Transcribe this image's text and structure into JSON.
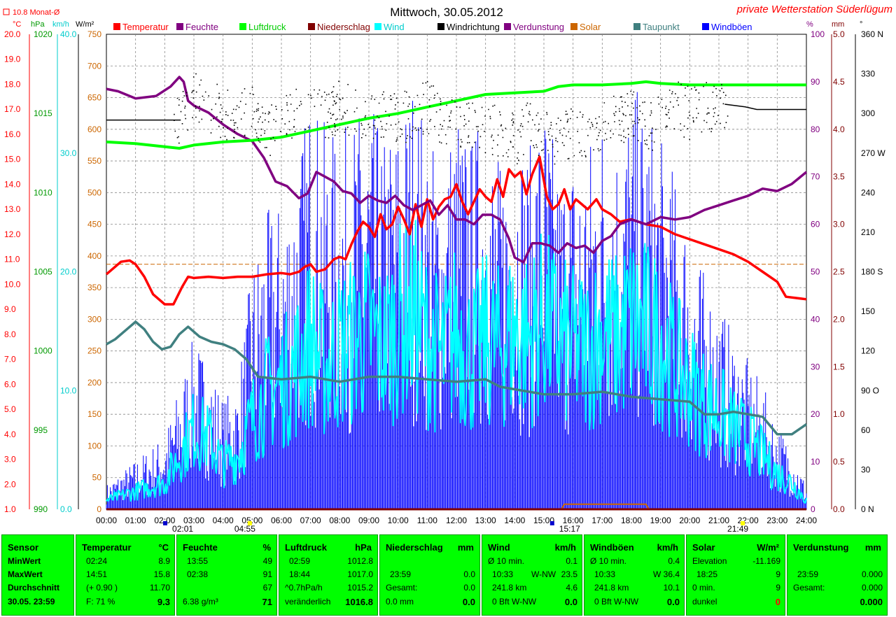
{
  "title": "Mittwoch, 30.05.2012",
  "station": "private Wetterstation Süderlügum",
  "monat_label": "10.8 Monat-Ø",
  "colors": {
    "temp": "#ff0000",
    "feuchte": "#800080",
    "luftdruck": "#00ff00",
    "niederschlag": "#800000",
    "wind": "#00ffff",
    "windrichtung": "#000000",
    "verdunstung": "#800080",
    "solar": "#cc6600",
    "taupunkt": "#408080",
    "windboeen": "#0000ff",
    "panel": "#00ff00"
  },
  "legend": [
    {
      "label": "Temperatur",
      "color": "#ff0000"
    },
    {
      "label": "Feuchte",
      "color": "#800080"
    },
    {
      "label": "Luftdruck",
      "color": "#00ff00"
    },
    {
      "label": "Niederschlag",
      "color": "#800000"
    },
    {
      "label": "Wind",
      "color": "#00ffff"
    },
    {
      "label": "Windrichtung",
      "color": "#000000"
    },
    {
      "label": "Verdunstung",
      "color": "#800080"
    },
    {
      "label": "Solar",
      "color": "#cc6600"
    },
    {
      "label": "Taupunkt",
      "color": "#408080"
    },
    {
      "label": "Windböen",
      "color": "#0000ff"
    }
  ],
  "chart_data": {
    "type": "line",
    "axes": {
      "temp": {
        "unit": "°C",
        "range": [
          1.0,
          20.0
        ],
        "ticks": [
          "20.0",
          "19.0",
          "18.0",
          "17.0",
          "16.0",
          "15.0",
          "14.0",
          "13.0",
          "12.0",
          "11.0",
          "10.0",
          "9.0",
          "8.0",
          "7.0",
          "6.0",
          "5.0",
          "4.0",
          "3.0",
          "2.0",
          "1.0"
        ]
      },
      "pressure": {
        "unit": "hPa",
        "range": [
          990,
          1020
        ],
        "ticks": [
          "1020",
          "1015",
          "1010",
          "1005",
          "1000",
          "995",
          "990"
        ]
      },
      "wind": {
        "unit": "km/h",
        "range": [
          0,
          40
        ],
        "ticks": [
          "40.0",
          "30.0",
          "20.0",
          "10.0",
          "0.0"
        ]
      },
      "solar": {
        "unit": "W/m²",
        "range": [
          0,
          750
        ],
        "ticks": [
          "750",
          "700",
          "650",
          "600",
          "550",
          "500",
          "450",
          "400",
          "350",
          "300",
          "250",
          "200",
          "150",
          "100",
          "50",
          "0"
        ]
      },
      "humidity": {
        "unit": "%",
        "range": [
          0,
          100
        ],
        "ticks": [
          "100",
          "90",
          "80",
          "70",
          "60",
          "50",
          "40",
          "30",
          "20",
          "10",
          "0"
        ]
      },
      "rain": {
        "unit": "mm",
        "range": [
          0,
          5
        ],
        "ticks": [
          "5.0",
          "4.5",
          "4.0",
          "3.5",
          "3.0",
          "2.5",
          "2.0",
          "1.5",
          "1.0",
          "0.5",
          "0.0"
        ]
      },
      "direction": {
        "unit": "°",
        "range": [
          0,
          360
        ],
        "ticks": [
          "360 N",
          "330",
          "300",
          "270 W",
          "240",
          "210",
          "180 S",
          "150",
          "120",
          "90 O",
          "60",
          "30",
          "0 N"
        ]
      },
      "time": {
        "range": [
          0,
          24
        ],
        "ticks": [
          "00:00",
          "01:00",
          "02:00",
          "03:00",
          "04:00",
          "05:00",
          "06:00",
          "07:00",
          "08:00",
          "09:00",
          "10:00",
          "11:00",
          "12:00",
          "13:00",
          "14:00",
          "15:00",
          "16:00",
          "17:00",
          "18:00",
          "19:00",
          "20:00",
          "21:00",
          "22:00",
          "23:00",
          "24:00"
        ]
      }
    },
    "markers": [
      "02:01",
      "04:55",
      "15:17",
      "21:49"
    ],
    "series": [
      {
        "name": "Temperatur",
        "axis": "temp",
        "x": [
          0,
          0.5,
          0.8,
          1.0,
          1.3,
          1.6,
          2.0,
          2.3,
          2.6,
          2.8,
          3.0,
          3.5,
          4.0,
          4.5,
          5.0,
          5.5,
          6.0,
          6.3,
          6.6,
          6.8,
          7.0,
          7.2,
          7.5,
          7.8,
          8.0,
          8.2,
          8.4,
          8.6,
          8.8,
          9.0,
          9.2,
          9.4,
          9.6,
          9.8,
          10.0,
          10.2,
          10.4,
          10.6,
          10.8,
          11.0,
          11.2,
          11.4,
          11.6,
          11.8,
          12.0,
          12.2,
          12.4,
          12.6,
          12.8,
          13.0,
          13.2,
          13.4,
          13.6,
          13.8,
          14.0,
          14.2,
          14.4,
          14.6,
          14.85,
          15.1,
          15.3,
          15.5,
          15.7,
          15.9,
          16.1,
          16.3,
          16.5,
          16.8,
          17.0,
          17.3,
          17.6,
          18.0,
          18.5,
          19.0,
          19.5,
          20.0,
          20.5,
          21.0,
          21.5,
          22.0,
          22.5,
          23.0,
          23.3,
          24.0
        ],
        "y": [
          10.4,
          10.9,
          10.95,
          10.8,
          10.3,
          9.6,
          9.2,
          9.2,
          9.9,
          10.3,
          10.25,
          10.3,
          10.25,
          10.3,
          10.3,
          10.4,
          10.45,
          10.4,
          10.5,
          10.7,
          10.8,
          10.5,
          10.6,
          11.0,
          11.1,
          11.0,
          11.6,
          12.1,
          12.5,
          12.3,
          11.9,
          12.8,
          12.2,
          12.4,
          13.1,
          12.6,
          12.0,
          13.2,
          12.3,
          13.4,
          12.6,
          13.1,
          13.4,
          13.5,
          14.0,
          13.3,
          12.8,
          13.3,
          13.8,
          13.5,
          13.3,
          14.2,
          13.5,
          14.6,
          14.3,
          14.5,
          13.6,
          14.4,
          15.1,
          13.5,
          13.0,
          13.2,
          13.8,
          13.0,
          13.4,
          13.2,
          13.0,
          13.4,
          13.0,
          12.8,
          12.5,
          12.6,
          12.4,
          12.3,
          12.0,
          11.8,
          11.6,
          11.4,
          11.2,
          10.9,
          10.5,
          10.1,
          9.5,
          9.4
        ]
      },
      {
        "name": "Feuchte",
        "axis": "humidity",
        "x": [
          0,
          0.4,
          1.0,
          1.7,
          2.2,
          2.5,
          2.65,
          2.8,
          3.0,
          3.5,
          4.0,
          4.5,
          5.0,
          5.4,
          5.8,
          6.2,
          6.6,
          6.9,
          7.2,
          7.5,
          7.8,
          8.1,
          8.4,
          8.7,
          9.0,
          9.3,
          9.6,
          9.9,
          10.2,
          10.5,
          10.8,
          11.1,
          11.4,
          11.7,
          12.0,
          12.3,
          12.6,
          12.9,
          13.2,
          13.5,
          13.8,
          14.0,
          14.3,
          14.6,
          14.9,
          15.2,
          15.5,
          15.8,
          16.1,
          16.4,
          16.7,
          17.0,
          17.3,
          17.6,
          18.0,
          18.5,
          19.0,
          19.5,
          20.0,
          20.5,
          21.0,
          21.5,
          22.0,
          22.5,
          23.0,
          23.5,
          24.0
        ],
        "y": [
          88.5,
          88,
          86.5,
          87,
          89,
          91,
          90,
          86,
          85,
          83.5,
          81,
          79,
          77.5,
          74,
          69,
          68,
          65.5,
          66.5,
          71,
          70,
          69,
          67,
          66.5,
          64.5,
          66,
          65,
          64.5,
          66,
          64,
          63,
          64,
          65,
          62,
          64,
          61,
          61,
          60,
          62,
          62,
          61,
          57,
          53,
          52,
          56,
          56,
          55.5,
          54,
          56,
          55,
          55.5,
          54,
          56.5,
          57.5,
          60,
          61,
          60,
          61.5,
          61,
          61.5,
          63,
          64,
          65,
          66,
          67.5,
          67,
          68.5,
          71
        ]
      },
      {
        "name": "Luftdruck",
        "axis": "pressure",
        "x": [
          0,
          1,
          2,
          2.5,
          3,
          4,
          5,
          6,
          7,
          8,
          9,
          10,
          11,
          12,
          13,
          14,
          15,
          15.5,
          16,
          17,
          18,
          18.5,
          19,
          20,
          21,
          22,
          23,
          24
        ],
        "y": [
          1013.2,
          1013.1,
          1012.9,
          1012.8,
          1013.0,
          1013.2,
          1013.3,
          1013.5,
          1013.9,
          1014.3,
          1014.7,
          1015.0,
          1015.4,
          1015.8,
          1016.2,
          1016.3,
          1016.4,
          1016.7,
          1016.8,
          1016.8,
          1016.9,
          1017.0,
          1016.9,
          1016.8,
          1016.8,
          1016.8,
          1016.8,
          1016.8
        ]
      },
      {
        "name": "Taupunkt",
        "axis": "temp",
        "x": [
          0,
          0.3,
          0.7,
          1.0,
          1.3,
          1.6,
          1.9,
          2.2,
          2.5,
          2.8,
          3.2,
          3.6,
          4.0,
          4.4,
          4.8,
          5.2,
          6.0,
          7.0,
          8.0,
          9.0,
          10.0,
          11.0,
          12.0,
          13.0,
          13.5,
          14.0,
          15.0,
          16.0,
          17.0,
          18.0,
          19.0,
          20.0,
          20.5,
          21.0,
          21.5,
          22.0,
          22.5,
          23.0,
          23.5,
          24.0
        ],
        "y": [
          7.6,
          7.8,
          8.2,
          8.5,
          8.2,
          7.7,
          7.4,
          7.5,
          8.0,
          8.3,
          7.9,
          7.7,
          7.6,
          7.4,
          7.0,
          6.3,
          6.2,
          6.3,
          6.1,
          6.3,
          6.3,
          6.2,
          6.1,
          6.2,
          5.9,
          5.8,
          5.6,
          5.6,
          5.7,
          5.5,
          5.4,
          5.3,
          4.8,
          4.8,
          4.9,
          4.8,
          4.7,
          4.0,
          4.0,
          4.4
        ]
      },
      {
        "name": "Windrichtung",
        "axis": "direction",
        "x": [
          0,
          0.5,
          1,
          1.5,
          2,
          2.5,
          3,
          3.5,
          4,
          4.5,
          5,
          5.5,
          6,
          6.5,
          7,
          7.5,
          8,
          8.5,
          9,
          9.5,
          10,
          10.5,
          11,
          11.5,
          12,
          12.5,
          13,
          13.5,
          14,
          14.5,
          15,
          15.5,
          16,
          16.5,
          17,
          17.5,
          18,
          18.5,
          19,
          19.5,
          20,
          20.5,
          21,
          21.5,
          22,
          22.5,
          23,
          23.5,
          24
        ],
        "y": [
          295,
          295,
          295,
          295,
          295,
          295,
          315,
          305,
          300,
          300,
          300,
          285,
          295,
          300,
          305,
          300,
          305,
          300,
          295,
          300,
          295,
          300,
          305,
          295,
          290,
          290,
          290,
          285,
          280,
          290,
          285,
          280,
          285,
          285,
          290,
          295,
          300,
          290,
          295,
          305,
          300,
          305,
          305,
          305,
          303,
          303,
          302,
          302,
          302
        ]
      },
      {
        "name": "Solar",
        "axis": "solar",
        "x": [
          0,
          15.6,
          15.7,
          18.5,
          18.6,
          24
        ],
        "y": [
          0,
          0,
          8,
          8,
          0,
          0
        ]
      },
      {
        "name": "Niederschlag",
        "axis": "rain",
        "x": [
          0,
          24
        ],
        "y": [
          0.0,
          0.0
        ]
      }
    ],
    "wind_envelope": {
      "name": "Wind",
      "axis": "wind",
      "x": [
        0,
        1,
        2,
        2.5,
        3,
        3.5,
        4,
        4.5,
        5,
        5.5,
        6,
        6.5,
        7,
        7.5,
        8,
        8.5,
        9,
        9.5,
        10,
        10.5,
        11,
        11.5,
        12,
        12.5,
        13,
        13.5,
        14,
        14.5,
        15,
        15.5,
        16,
        16.5,
        17,
        17.5,
        18,
        18.5,
        19,
        19.5,
        20,
        20.5,
        21,
        21.5,
        22,
        22.5,
        23,
        23.5,
        24
      ],
      "y": [
        1,
        2,
        3,
        6,
        9,
        8,
        5,
        6,
        10,
        13,
        14,
        16,
        19,
        16,
        18,
        19,
        20,
        18,
        21,
        22,
        19,
        17,
        20,
        17,
        19,
        18,
        20,
        19,
        21,
        19,
        18,
        18,
        20,
        19,
        21,
        20,
        19,
        16,
        14,
        12,
        11,
        9,
        8,
        6,
        4,
        3,
        1
      ]
    },
    "gust_envelope": {
      "name": "Windböen",
      "axis": "wind",
      "x": [
        0,
        1,
        2,
        2.5,
        3,
        3.5,
        4,
        4.5,
        5,
        5.5,
        6,
        6.5,
        7,
        7.5,
        8,
        8.5,
        9,
        9.5,
        10,
        10.5,
        11,
        11.5,
        12,
        12.5,
        13,
        13.5,
        14,
        14.5,
        15,
        15.5,
        16,
        16.5,
        17,
        17.5,
        18,
        18.5,
        19,
        19.5,
        20,
        20.5,
        21,
        21.5,
        22,
        22.5,
        23,
        23.5,
        24
      ],
      "y": [
        2,
        4,
        6,
        10,
        14,
        12,
        9,
        10,
        20,
        24,
        25,
        28,
        34,
        31,
        30,
        32,
        33,
        30,
        32,
        35,
        31,
        28,
        33,
        30,
        33,
        28,
        32,
        29,
        34,
        28,
        29,
        30,
        33,
        31,
        34,
        33,
        30,
        27,
        23,
        19,
        17,
        14,
        12,
        10,
        7,
        5,
        2
      ]
    }
  },
  "panel": {
    "sensor": {
      "header": "Sensor",
      "rows": [
        "MinWert",
        "MaxWert",
        "Durchschnitt",
        "30.05. 23:59"
      ]
    },
    "temperatur": {
      "header": "Temperatur",
      "unit": "°C",
      "rows": [
        [
          "02:24",
          "8.9"
        ],
        [
          "14:51",
          "15.8"
        ],
        [
          "(+ 0.90 )",
          "11.70"
        ],
        [
          "F: 71 %",
          "9.3"
        ]
      ]
    },
    "feuchte": {
      "header": "Feuchte",
      "unit": "%",
      "rows": [
        [
          "13:55",
          "49"
        ],
        [
          "02:38",
          "91"
        ],
        [
          "",
          "67"
        ],
        [
          "6.38 g/m³",
          "71"
        ]
      ]
    },
    "luftdruck": {
      "header": "Luftdruck",
      "unit": "hPa",
      "rows": [
        [
          "02:59",
          "1012.8"
        ],
        [
          "18:44",
          "1017.0"
        ],
        [
          "^0.7hPa/h",
          "1015.2"
        ],
        [
          "veränderlich",
          "1016.8"
        ]
      ]
    },
    "niederschlag": {
      "header": "Niederschlag",
      "unit": "mm",
      "rows": [
        [
          "",
          ""
        ],
        [
          "23:59",
          "0.0"
        ],
        [
          "Gesamt:",
          "0.0"
        ],
        [
          "0.0 mm",
          "0.0"
        ]
      ]
    },
    "wind": {
      "header": "Wind",
      "unit": "km/h",
      "rows": [
        [
          "Ø 10 min.",
          "",
          "0.1"
        ],
        [
          "10:33",
          "W-NW",
          "23.5"
        ],
        [
          "241.8 km",
          "",
          "4.6"
        ],
        [
          "0 Bft W-NW",
          "",
          "0.0"
        ]
      ]
    },
    "windboeen": {
      "header": "Windböen",
      "unit": "km/h",
      "rows": [
        [
          "Ø 10 min.",
          "",
          "0.4"
        ],
        [
          "10:33",
          "W",
          "36.4"
        ],
        [
          "241.8 km",
          "",
          "10.1"
        ],
        [
          "0 Bft W-NW",
          "",
          "0.0"
        ]
      ]
    },
    "solar": {
      "header": "Solar",
      "unit": "W/m²",
      "rows": [
        [
          "Elevation",
          "-11.169"
        ],
        [
          "18:25",
          "9"
        ],
        [
          "0 min.",
          "9"
        ],
        [
          "dunkel",
          "0"
        ]
      ]
    },
    "verdunstung": {
      "header": "Verdunstung",
      "unit": "mm",
      "rows": [
        [
          "",
          ""
        ],
        [
          "23:59",
          "0.000"
        ],
        [
          "Gesamt:",
          "0.000"
        ],
        [
          "",
          "0.000"
        ]
      ]
    }
  }
}
